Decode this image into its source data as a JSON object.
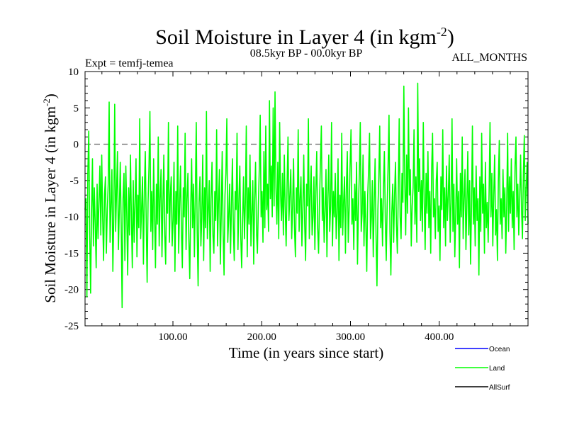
{
  "chart_data": {
    "type": "line",
    "title": "Soil Moisture in Layer 4 (in kgm",
    "title_sup": "-2",
    "title_end": ")",
    "subtitle": "08.5kyr BP - 00.0kyr BP",
    "expt_label": "Expt = temfj-temea",
    "months_label": "ALL_MONTHS",
    "xlabel": "Time (in years since start)",
    "ylabel": "Soil Moisture in Layer 4 (in kgm",
    "ylabel_sup": "-2",
    "ylabel_end": ")",
    "xlim": [
      1,
      500
    ],
    "ylim": [
      -25,
      10
    ],
    "x_ticks": [
      100,
      200,
      300,
      400
    ],
    "x_tick_labels": [
      "100.00",
      "200.00",
      "300.00",
      "400.00"
    ],
    "y_ticks": [
      -25,
      -20,
      -15,
      -10,
      -5,
      0,
      5,
      10
    ],
    "y_tick_labels": [
      "-25",
      "-20",
      "-15",
      "-10",
      "-5",
      "0",
      "5",
      "10"
    ],
    "reference_line": 0,
    "series": [
      {
        "name": "Ocean",
        "color": "#0000ff",
        "values": []
      },
      {
        "name": "Land",
        "color": "#00ff00",
        "mean": -8,
        "min": -22.5,
        "max": 8.4,
        "n_points": 500,
        "values": [
          -9.0,
          -7.5,
          -21.0,
          -4.0,
          1.8,
          -12.0,
          -20.5,
          -9.5,
          -2.0,
          -14.0,
          -6.0,
          -11.0,
          -17.0,
          -5.5,
          -13.0,
          -8.0,
          -3.0,
          -12.5,
          -1.5,
          -10.0,
          -16.0,
          -7.0,
          -4.5,
          -15.0,
          -9.0,
          -5.5,
          5.8,
          -13.5,
          -8.5,
          -3.5,
          -17.5,
          -10.0,
          5.5,
          -12.0,
          -6.5,
          -1.0,
          -14.5,
          -9.0,
          -2.5,
          -11.0,
          -22.5,
          -7.5,
          -4.0,
          -16.0,
          -3.0,
          -9.5,
          -18.0,
          -6.0,
          -12.5,
          -1.5,
          -10.0,
          -17.0,
          -5.0,
          -13.5,
          -8.0,
          -2.0,
          -15.5,
          -7.0,
          -11.5,
          3.5,
          -13.0,
          -9.0,
          -4.5,
          -16.5,
          -6.5,
          -1.0,
          -10.5,
          -19.0,
          -8.0,
          -3.0,
          4.5,
          -12.0,
          -6.5,
          -14.5,
          -2.0,
          -9.5,
          -17.0,
          -5.5,
          -11.0,
          1.0,
          -14.0,
          -7.5,
          -3.5,
          -15.5,
          -8.5,
          -1.5,
          -12.5,
          -16.5,
          -5.0,
          -9.5,
          3.0,
          -13.5,
          -7.0,
          -4.5,
          -14.0,
          -10.5,
          -2.5,
          -17.5,
          -6.5,
          -11.0,
          2.5,
          -15.0,
          -8.5,
          -3.0,
          -12.0,
          -17.0,
          -6.0,
          -10.0,
          1.5,
          -14.5,
          -7.5,
          -4.0,
          -13.0,
          -18.5,
          -9.0,
          -2.0,
          -11.5,
          -5.5,
          -15.5,
          -7.0,
          3.0,
          -12.0,
          -19.5,
          -8.0,
          -4.5,
          -14.0,
          -10.0,
          -1.5,
          -16.0,
          -6.0,
          -11.5,
          4.5,
          -13.0,
          -9.0,
          -5.0,
          -17.5,
          -7.5,
          -2.5,
          -12.5,
          -15.0,
          -6.5,
          -10.5,
          2.0,
          -14.0,
          -8.0,
          -3.5,
          -16.5,
          -9.5,
          -1.0,
          -12.0,
          -18.0,
          -7.0,
          -4.0,
          3.5,
          -13.5,
          -10.0,
          -5.5,
          -15.0,
          -8.5,
          -2.0,
          -11.5,
          -16.0,
          -6.5,
          -9.0,
          1.5,
          -14.5,
          -7.5,
          -3.0,
          -12.5,
          -17.0,
          -10.5,
          -4.5,
          -13.0,
          -8.0,
          2.5,
          -15.5,
          -6.0,
          -11.0,
          -1.5,
          -14.0,
          -9.5,
          -5.0,
          -16.5,
          -7.5,
          -2.5,
          -12.0,
          -15.0,
          -8.5,
          -3.5,
          4.0,
          -10.0,
          -6.5,
          -13.5,
          -1.0,
          -11.5,
          2.5,
          -9.0,
          -5.5,
          -12.0,
          6.0,
          -7.5,
          -3.0,
          -10.0,
          5.0,
          -8.5,
          7.2,
          -6.0,
          -11.0,
          -2.5,
          -13.0,
          3.0,
          -7.0,
          -10.5,
          -4.0,
          -12.5,
          -1.5,
          -9.0,
          -14.0,
          -5.5,
          1.0,
          -10.5,
          -7.0,
          -3.5,
          -13.0,
          -8.5,
          -2.0,
          -11.5,
          -15.5,
          -6.0,
          -9.5,
          2.0,
          -12.0,
          -7.5,
          -4.5,
          -14.0,
          -9.0,
          -1.5,
          -11.0,
          -16.0,
          -5.5,
          -8.5,
          3.5,
          -13.0,
          -7.0,
          -3.0,
          -12.5,
          -10.0,
          -4.5,
          -14.5,
          -6.5,
          -1.0,
          -11.5,
          -15.0,
          -8.0,
          -2.5,
          2.5,
          -10.5,
          -6.0,
          -13.5,
          -9.0,
          -3.5,
          -15.5,
          -7.5,
          -1.5,
          -12.0,
          -8.5,
          3.0,
          -14.0,
          -6.5,
          -10.0,
          -4.0,
          -13.0,
          -9.5,
          -2.0,
          -16.0,
          -7.0,
          -11.5,
          1.5,
          -12.5,
          -8.0,
          -4.5,
          -15.0,
          -6.0,
          -1.0,
          -13.5,
          -9.0,
          -3.0,
          2.0,
          -11.0,
          -7.5,
          -14.5,
          -5.5,
          -10.5,
          -2.5,
          -16.5,
          -8.5,
          -4.0,
          3.0,
          -12.0,
          -9.5,
          -1.5,
          -14.0,
          -6.5,
          -11.0,
          -17.5,
          -7.0,
          -3.5,
          1.5,
          -13.0,
          -10.0,
          -5.0,
          -15.5,
          -8.0,
          -2.0,
          -12.5,
          -19.5,
          -9.0,
          -4.5,
          2.5,
          -11.5,
          -7.5,
          -14.0,
          -6.0,
          -1.0,
          -10.5,
          -16.0,
          -8.5,
          -3.0,
          4.0,
          -12.0,
          -18.0,
          -9.5,
          -5.5,
          -13.5,
          -7.0,
          -2.5,
          -11.0,
          -15.0,
          -6.5,
          3.5,
          -10.0,
          -13.0,
          -4.0,
          -8.0,
          8.0,
          -5.0,
          -12.5,
          -1.5,
          -9.5,
          5.0,
          -7.0,
          -3.5,
          -14.0,
          -8.5,
          -6.0,
          2.0,
          -11.0,
          -4.5,
          -13.5,
          8.4,
          -6.5,
          -2.0,
          -10.5,
          -5.0,
          -12.0,
          3.0,
          -8.0,
          -14.5,
          -4.0,
          -9.5,
          -1.0,
          -11.5,
          -6.5,
          -15.0,
          -3.5,
          1.5,
          -10.0,
          -7.5,
          -13.0,
          -5.0,
          -2.5,
          -12.0,
          -8.5,
          -16.0,
          -4.5,
          -9.0,
          2.0,
          -11.5,
          -6.0,
          -14.0,
          -3.0,
          -10.5,
          -7.0,
          -1.5,
          -13.5,
          -8.0,
          3.5,
          -12.0,
          -5.5,
          -15.5,
          -9.5,
          -2.0,
          -11.0,
          -6.5,
          -17.0,
          -4.0,
          -10.0,
          1.0,
          -13.0,
          -7.5,
          -3.5,
          -14.5,
          -8.5,
          -1.0,
          -12.5,
          -5.0,
          -16.5,
          -9.0,
          2.5,
          -11.0,
          -6.0,
          -14.0,
          -3.0,
          -10.5,
          -7.5,
          -18.0,
          -4.5,
          -12.0,
          1.5,
          -9.5,
          -5.5,
          -15.0,
          -2.5,
          -11.5,
          -8.0,
          -13.5,
          -6.5,
          3.0,
          -10.0,
          -4.0,
          -14.0,
          -7.0,
          -1.5,
          -12.5,
          -9.0,
          -16.0,
          -5.0,
          0.5,
          -11.0,
          -7.5,
          -13.0,
          -3.5,
          -10.0,
          -6.0,
          -15.0,
          -8.5,
          1.5,
          -12.0,
          -4.5,
          -9.5,
          -2.0,
          -11.5,
          -6.5,
          -14.5,
          -3.0,
          1.0,
          -10.0,
          -5.5,
          -12.5,
          -7.5,
          -1.5,
          -9.0,
          -13.0,
          -4.0,
          1.2,
          -10.5,
          -6.0,
          -2.5,
          -11.0
        ]
      },
      {
        "name": "AllSurf",
        "color": "#000000",
        "values": []
      }
    ]
  }
}
